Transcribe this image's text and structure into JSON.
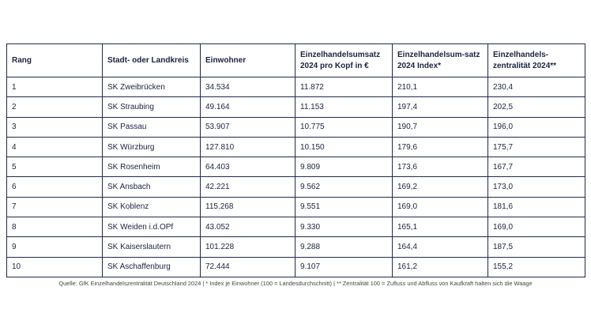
{
  "table": {
    "header": [
      "Rang",
      "Stadt- oder Landkreis",
      "Einwohner",
      "Einzelhandelsumsatz 2024 pro Kopf in €",
      "Einzelhandelsum-satz 2024 Index*",
      "Einzelhandels-zentralität 2024**"
    ],
    "rows": [
      [
        "1",
        "SK Zweibrücken",
        "34.534",
        "11.872",
        "210,1",
        "230,4"
      ],
      [
        "2",
        "SK Straubing",
        "49.164",
        "11.153",
        "197,4",
        "202,5"
      ],
      [
        "3",
        "SK Passau",
        "53.907",
        "10.775",
        "190,7",
        "196,0"
      ],
      [
        "4",
        "SK Würzburg",
        "127.810",
        "10.150",
        "179,6",
        "175,7"
      ],
      [
        "5",
        "SK Rosenheim",
        "64.403",
        "9.809",
        "173,6",
        "167,7"
      ],
      [
        "6",
        "SK Ansbach",
        "42.221",
        "9.562",
        "169,2",
        "173,0"
      ],
      [
        "7",
        "SK Koblenz",
        "115.268",
        "9.551",
        "169,0",
        "181,6"
      ],
      [
        "8",
        "SK Weiden i.d.OPf",
        "43.052",
        "9.330",
        "165,1",
        "169,0"
      ],
      [
        "9",
        "SK Kaiserslautern",
        "101.228",
        "9.288",
        "164,4",
        "187,5"
      ],
      [
        "10",
        "SK Aschaffenburg",
        "72.444",
        "9.107",
        "161,2",
        "155,2"
      ]
    ]
  },
  "caption": "Quelle: GfK Einzelhandelszentralität Deutschland 2024 | * Index je Einwohner (100 = Landesdurchschnitt) | ** Zentralität 100 = Zufluss und Abfluss von Kaufkraft halten sich die Waage"
}
